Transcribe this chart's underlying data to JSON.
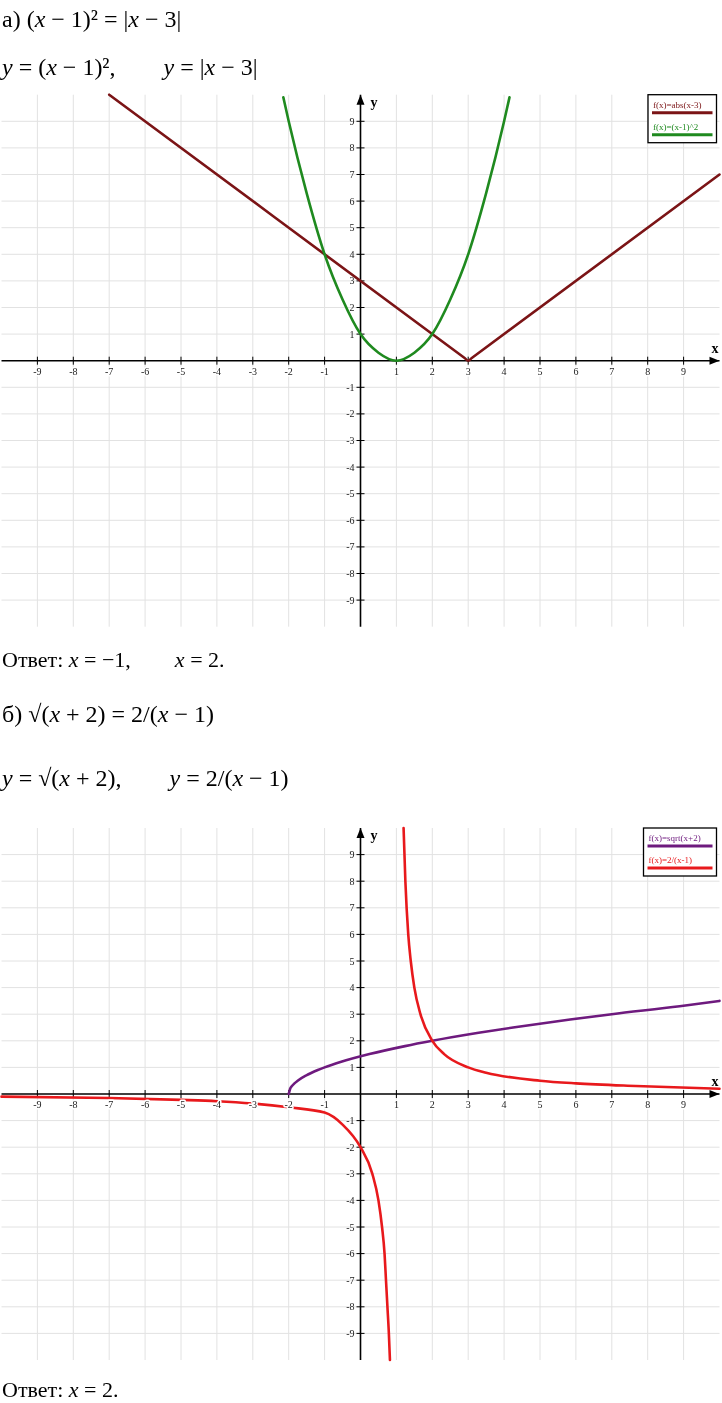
{
  "chart_data": [
    {
      "type": "line",
      "title": "а) (x − 1)² = |x − 3|",
      "subtitle": "y = (x − 1)²,        y = |x − 3|",
      "xlabel": "x",
      "ylabel": "y",
      "xlim": [
        -10,
        10
      ],
      "ylim": [
        -10,
        10
      ],
      "xticks": [
        -9,
        -8,
        -7,
        -6,
        -5,
        -4,
        -3,
        -2,
        -1,
        1,
        2,
        3,
        4,
        5,
        6,
        7,
        8,
        9
      ],
      "yticks": [
        -9,
        -8,
        -7,
        -6,
        -5,
        -4,
        -3,
        -2,
        -1,
        1,
        2,
        3,
        4,
        5,
        6,
        7,
        8,
        9
      ],
      "grid": true,
      "legend": "top right",
      "annotations": [
        "Ответ: x = −1,        x = 2."
      ],
      "series": [
        {
          "name": "f(x)=abs(x-3)",
          "color": "#7b1416",
          "x": [
            -7,
            2.9,
            3,
            3.1,
            10
          ],
          "values": [
            10,
            0.1,
            0,
            0.1,
            7
          ]
        },
        {
          "name": "f(x)=(x-1)^2",
          "color": "#1f8a1f",
          "x": [
            -2.15,
            -2,
            -1.5,
            -1,
            -0.5,
            0,
            0.5,
            1,
            1.5,
            2,
            2.5,
            3,
            3.5,
            4,
            4.15
          ],
          "values": [
            9.9,
            9,
            6.3,
            4,
            2.3,
            1,
            0.3,
            0,
            0.3,
            1,
            2.3,
            4,
            6.3,
            9,
            9.9
          ]
        }
      ]
    },
    {
      "type": "line",
      "title": "б) √(x + 2) = 2/(x − 1)",
      "subtitle": "y = √(x + 2),        y = 2/(x − 1)",
      "xlabel": "x",
      "ylabel": "y",
      "xlim": [
        -10,
        10
      ],
      "ylim": [
        -10,
        10
      ],
      "xticks": [
        -9,
        -8,
        -7,
        -6,
        -5,
        -4,
        -3,
        -2,
        -1,
        1,
        2,
        3,
        4,
        5,
        6,
        7,
        8,
        9
      ],
      "yticks": [
        -9,
        -8,
        -7,
        -6,
        -5,
        -4,
        -3,
        -2,
        -1,
        1,
        2,
        3,
        4,
        5,
        6,
        7,
        8,
        9
      ],
      "grid": true,
      "legend": "top right",
      "annotations": [
        "Ответ: x = 2."
      ],
      "series": [
        {
          "name": "f(x)=sqrt(x+2)",
          "color": "#6e1a7e",
          "x": [
            -2,
            -1.96,
            -1.91,
            -1.84,
            -1.75,
            -1.51,
            -1.19,
            -1,
            -0.56,
            0.25,
            1.24,
            2,
            3.29,
            4.25,
            5.84,
            7,
            8.89,
            10
          ],
          "values": [
            0,
            0.2,
            0.3,
            0.4,
            0.5,
            0.7,
            0.9,
            1,
            1.2,
            1.5,
            1.8,
            2,
            2.3,
            2.5,
            2.8,
            3,
            3.3,
            3.5
          ]
        },
        {
          "name": "f(x)=2/(x-1)",
          "color": "#e8191c",
          "x": [
            -10,
            -7,
            -5,
            -4,
            -3,
            -2,
            -1,
            -0.5,
            0,
            0.33,
            0.5,
            0.6,
            0.67,
            0.71,
            0.75,
            0.79,
            0.82,
            1,
            1.2,
            1.25,
            1.33,
            1.4,
            1.5,
            1.67,
            2,
            2.33,
            3,
            3.5,
            5,
            6,
            7.67,
            10
          ],
          "values": [
            -0.1,
            -0.15,
            -0.22,
            -0.27,
            -0.36,
            -0.5,
            -0.7,
            -1.15,
            -2,
            -3,
            -4,
            -5,
            -6,
            -7,
            -8,
            -9,
            -10,
            null,
            10,
            8,
            6,
            5,
            4,
            3,
            2,
            1.5,
            1,
            0.8,
            0.5,
            0.4,
            0.3,
            0.2
          ]
        }
      ]
    }
  ]
}
